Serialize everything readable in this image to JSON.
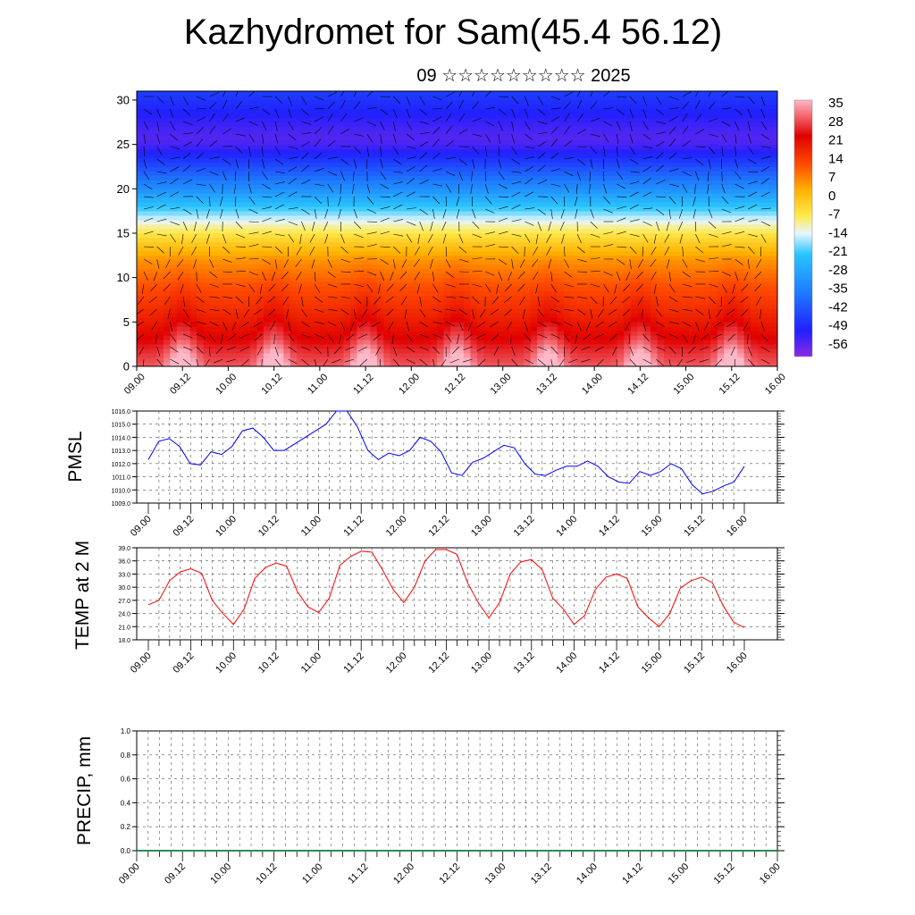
{
  "header": {
    "title": "Kazhydromet for Sam(45.4 56.12)",
    "subtitle": "09 ☆☆☆☆☆☆☆☆☆ 2025"
  },
  "colors": {
    "pmsl_line": "#0000ff",
    "temp_line": "#ff0000",
    "precip_line": "#2e8b57",
    "grid": "#555555"
  },
  "chart_data": [
    {
      "type": "heatmap",
      "title": "",
      "xlabel": "",
      "ylabel": "",
      "x_ticks": [
        "09.00",
        "09.12",
        "10.00",
        "10.12",
        "11.00",
        "11.12",
        "12.00",
        "12.12",
        "13.00",
        "13.12",
        "14.00",
        "14.12",
        "15.00",
        "15.12",
        "16.00"
      ],
      "y_ticks": [
        0,
        5,
        10,
        15,
        20,
        25,
        30
      ],
      "ylim": [
        0,
        31
      ],
      "colorbar": {
        "labels": [
          "35",
          "28",
          "21",
          "14",
          "7",
          "0",
          "-7",
          "-14",
          "-21",
          "-28",
          "-35",
          "-42",
          "-49",
          "-56"
        ],
        "range": [
          -63,
          38
        ]
      },
      "levels_y": [
        0,
        1.5,
        3,
        6,
        9,
        12,
        14,
        15.5,
        17,
        18.5,
        20,
        21.5,
        23,
        24.5,
        25.5,
        26.5,
        28,
        30,
        31
      ],
      "values_base": [
        34,
        30,
        25,
        18,
        12,
        5,
        -3,
        -10,
        -18,
        -26,
        -34,
        -41,
        -48,
        -55,
        -58,
        -57,
        -54,
        -50,
        -48
      ],
      "diurnal_amplitude": [
        16,
        12,
        8,
        4,
        2,
        1,
        0,
        0,
        0,
        0,
        0,
        0,
        0,
        0,
        0,
        0,
        0,
        0,
        0
      ],
      "afternoon_peaks_x": [
        "09.12",
        "10.12",
        "11.12",
        "12.12",
        "13.12",
        "14.12",
        "15.12"
      ],
      "overlay": "wind barbs"
    },
    {
      "type": "line",
      "title": "",
      "xlabel": "",
      "ylabel": "PMSL",
      "ylim": [
        1009.0,
        1016.0
      ],
      "y_ticks": [
        "1009.0",
        "1010.0",
        "1011.0",
        "1012.0",
        "1013.0",
        "1014.0",
        "1015.0",
        "1016.0"
      ],
      "x_ticks": [
        "09.00",
        "09.12",
        "10.00",
        "10.12",
        "11.00",
        "11.12",
        "12.00",
        "12.12",
        "13.00",
        "13.12",
        "14.00",
        "14.12",
        "15.00",
        "15.12",
        "16.00"
      ],
      "series": [
        {
          "values": [
            1012.3,
            1013.7,
            1013.9,
            1013.3,
            1012.0,
            1011.9,
            1012.9,
            1012.7,
            1013.3,
            1014.5,
            1014.7,
            1014.0,
            1013.0,
            1013.0,
            1013.5,
            1014.0,
            1014.5,
            1015.0,
            1016.0,
            1016.0,
            1014.8,
            1013.0,
            1012.3,
            1012.8,
            1012.6,
            1013.0,
            1014.0,
            1013.7,
            1012.9,
            1011.3,
            1011.1,
            1012.1,
            1012.4,
            1012.9,
            1013.4,
            1013.2,
            1012.0,
            1011.2,
            1011.1,
            1011.5,
            1011.8,
            1011.8,
            1012.2,
            1011.8,
            1011.0,
            1010.6,
            1010.5,
            1011.4,
            1011.1,
            1011.4,
            1012.0,
            1011.6,
            1010.4,
            1009.7,
            1009.9,
            1010.3,
            1010.6,
            1011.8
          ]
        }
      ]
    },
    {
      "type": "line",
      "title": "",
      "xlabel": "",
      "ylabel": "TEMP at 2 M",
      "ylim": [
        18.0,
        39.0
      ],
      "y_ticks": [
        "18.0",
        "21.0",
        "24.0",
        "27.0",
        "30.0",
        "33.0",
        "36.0",
        "39.0"
      ],
      "x_ticks": [
        "09.00",
        "09.12",
        "10.00",
        "10.12",
        "11.00",
        "11.12",
        "12.00",
        "12.12",
        "13.00",
        "13.12",
        "14.00",
        "14.12",
        "15.00",
        "15.12",
        "16.00"
      ],
      "series": [
        {
          "values": [
            26.0,
            27.0,
            31.5,
            33.5,
            34.2,
            33.2,
            27.0,
            24.0,
            21.5,
            25.0,
            32.0,
            34.5,
            35.5,
            34.8,
            29.0,
            25.5,
            24.2,
            27.5,
            35.0,
            37.0,
            38.2,
            38.0,
            34.0,
            29.5,
            26.5,
            30.0,
            36.0,
            38.6,
            38.6,
            37.5,
            31.0,
            26.5,
            23.0,
            26.5,
            33.0,
            35.8,
            36.3,
            34.0,
            27.5,
            25.0,
            21.5,
            23.5,
            29.5,
            32.3,
            33.0,
            32.0,
            25.5,
            23.0,
            21.0,
            24.0,
            29.8,
            31.5,
            32.3,
            31.0,
            25.8,
            22.0,
            20.8
          ]
        }
      ]
    },
    {
      "type": "line",
      "title": "",
      "xlabel": "",
      "ylabel": "PRECIP, mm",
      "ylim": [
        0.0,
        1.0
      ],
      "y_ticks": [
        "0.0",
        "0.2",
        "0.4",
        "0.6",
        "0.8",
        "1.0"
      ],
      "x_ticks": [
        "09.00",
        "09.12",
        "10.00",
        "10.12",
        "11.00",
        "11.12",
        "12.00",
        "12.12",
        "13.00",
        "13.12",
        "14.00",
        "14.12",
        "15.00",
        "15.12",
        "16.00"
      ],
      "series": [
        {
          "values": [
            0,
            0,
            0,
            0,
            0,
            0,
            0,
            0,
            0,
            0,
            0,
            0,
            0,
            0,
            0,
            0,
            0,
            0,
            0,
            0,
            0,
            0,
            0,
            0,
            0,
            0,
            0,
            0,
            0,
            0,
            0,
            0,
            0,
            0,
            0,
            0,
            0,
            0,
            0,
            0,
            0,
            0,
            0,
            0,
            0,
            0,
            0,
            0,
            0,
            0,
            0,
            0,
            0,
            0,
            0,
            0,
            0
          ]
        }
      ]
    }
  ]
}
